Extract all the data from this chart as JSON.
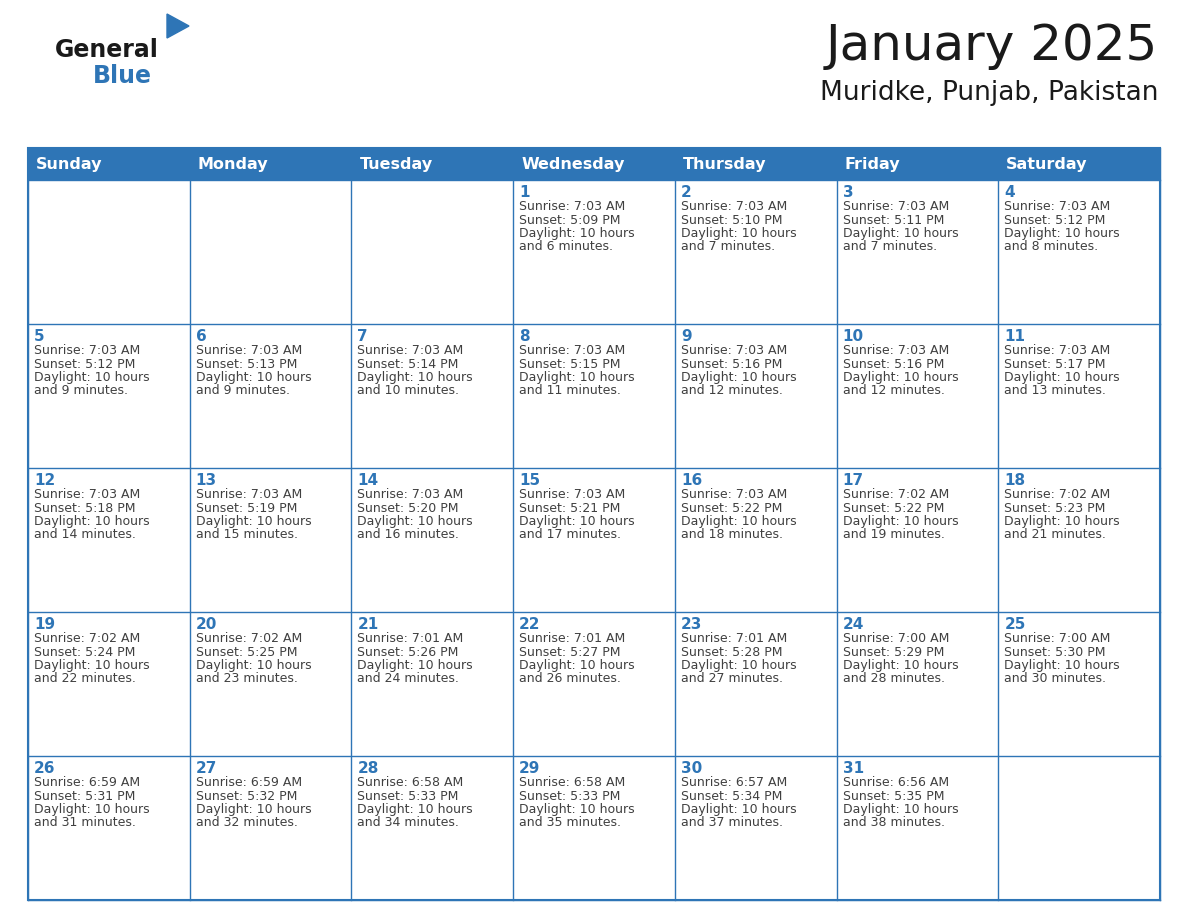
{
  "title": "January 2025",
  "subtitle": "Muridke, Punjab, Pakistan",
  "header_bg": "#2E75B6",
  "header_text_color": "#FFFFFF",
  "cell_bg": "#FFFFFF",
  "border_color": "#2E75B6",
  "day_number_color": "#2E75B6",
  "cell_text_color": "#404040",
  "weekdays": [
    "Sunday",
    "Monday",
    "Tuesday",
    "Wednesday",
    "Thursday",
    "Friday",
    "Saturday"
  ],
  "calendar": [
    [
      {
        "day": "",
        "sunrise": "",
        "sunset": "",
        "daylight": ""
      },
      {
        "day": "",
        "sunrise": "",
        "sunset": "",
        "daylight": ""
      },
      {
        "day": "",
        "sunrise": "",
        "sunset": "",
        "daylight": ""
      },
      {
        "day": "1",
        "sunrise": "7:03 AM",
        "sunset": "5:09 PM",
        "daylight": "10 hours and 6 minutes."
      },
      {
        "day": "2",
        "sunrise": "7:03 AM",
        "sunset": "5:10 PM",
        "daylight": "10 hours and 7 minutes."
      },
      {
        "day": "3",
        "sunrise": "7:03 AM",
        "sunset": "5:11 PM",
        "daylight": "10 hours and 7 minutes."
      },
      {
        "day": "4",
        "sunrise": "7:03 AM",
        "sunset": "5:12 PM",
        "daylight": "10 hours and 8 minutes."
      }
    ],
    [
      {
        "day": "5",
        "sunrise": "7:03 AM",
        "sunset": "5:12 PM",
        "daylight": "10 hours and 9 minutes."
      },
      {
        "day": "6",
        "sunrise": "7:03 AM",
        "sunset": "5:13 PM",
        "daylight": "10 hours and 9 minutes."
      },
      {
        "day": "7",
        "sunrise": "7:03 AM",
        "sunset": "5:14 PM",
        "daylight": "10 hours and 10 minutes."
      },
      {
        "day": "8",
        "sunrise": "7:03 AM",
        "sunset": "5:15 PM",
        "daylight": "10 hours and 11 minutes."
      },
      {
        "day": "9",
        "sunrise": "7:03 AM",
        "sunset": "5:16 PM",
        "daylight": "10 hours and 12 minutes."
      },
      {
        "day": "10",
        "sunrise": "7:03 AM",
        "sunset": "5:16 PM",
        "daylight": "10 hours and 12 minutes."
      },
      {
        "day": "11",
        "sunrise": "7:03 AM",
        "sunset": "5:17 PM",
        "daylight": "10 hours and 13 minutes."
      }
    ],
    [
      {
        "day": "12",
        "sunrise": "7:03 AM",
        "sunset": "5:18 PM",
        "daylight": "10 hours and 14 minutes."
      },
      {
        "day": "13",
        "sunrise": "7:03 AM",
        "sunset": "5:19 PM",
        "daylight": "10 hours and 15 minutes."
      },
      {
        "day": "14",
        "sunrise": "7:03 AM",
        "sunset": "5:20 PM",
        "daylight": "10 hours and 16 minutes."
      },
      {
        "day": "15",
        "sunrise": "7:03 AM",
        "sunset": "5:21 PM",
        "daylight": "10 hours and 17 minutes."
      },
      {
        "day": "16",
        "sunrise": "7:03 AM",
        "sunset": "5:22 PM",
        "daylight": "10 hours and 18 minutes."
      },
      {
        "day": "17",
        "sunrise": "7:02 AM",
        "sunset": "5:22 PM",
        "daylight": "10 hours and 19 minutes."
      },
      {
        "day": "18",
        "sunrise": "7:02 AM",
        "sunset": "5:23 PM",
        "daylight": "10 hours and 21 minutes."
      }
    ],
    [
      {
        "day": "19",
        "sunrise": "7:02 AM",
        "sunset": "5:24 PM",
        "daylight": "10 hours and 22 minutes."
      },
      {
        "day": "20",
        "sunrise": "7:02 AM",
        "sunset": "5:25 PM",
        "daylight": "10 hours and 23 minutes."
      },
      {
        "day": "21",
        "sunrise": "7:01 AM",
        "sunset": "5:26 PM",
        "daylight": "10 hours and 24 minutes."
      },
      {
        "day": "22",
        "sunrise": "7:01 AM",
        "sunset": "5:27 PM",
        "daylight": "10 hours and 26 minutes."
      },
      {
        "day": "23",
        "sunrise": "7:01 AM",
        "sunset": "5:28 PM",
        "daylight": "10 hours and 27 minutes."
      },
      {
        "day": "24",
        "sunrise": "7:00 AM",
        "sunset": "5:29 PM",
        "daylight": "10 hours and 28 minutes."
      },
      {
        "day": "25",
        "sunrise": "7:00 AM",
        "sunset": "5:30 PM",
        "daylight": "10 hours and 30 minutes."
      }
    ],
    [
      {
        "day": "26",
        "sunrise": "6:59 AM",
        "sunset": "5:31 PM",
        "daylight": "10 hours and 31 minutes."
      },
      {
        "day": "27",
        "sunrise": "6:59 AM",
        "sunset": "5:32 PM",
        "daylight": "10 hours and 32 minutes."
      },
      {
        "day": "28",
        "sunrise": "6:58 AM",
        "sunset": "5:33 PM",
        "daylight": "10 hours and 34 minutes."
      },
      {
        "day": "29",
        "sunrise": "6:58 AM",
        "sunset": "5:33 PM",
        "daylight": "10 hours and 35 minutes."
      },
      {
        "day": "30",
        "sunrise": "6:57 AM",
        "sunset": "5:34 PM",
        "daylight": "10 hours and 37 minutes."
      },
      {
        "day": "31",
        "sunrise": "6:56 AM",
        "sunset": "5:35 PM",
        "daylight": "10 hours and 38 minutes."
      },
      {
        "day": "",
        "sunrise": "",
        "sunset": "",
        "daylight": ""
      }
    ]
  ]
}
